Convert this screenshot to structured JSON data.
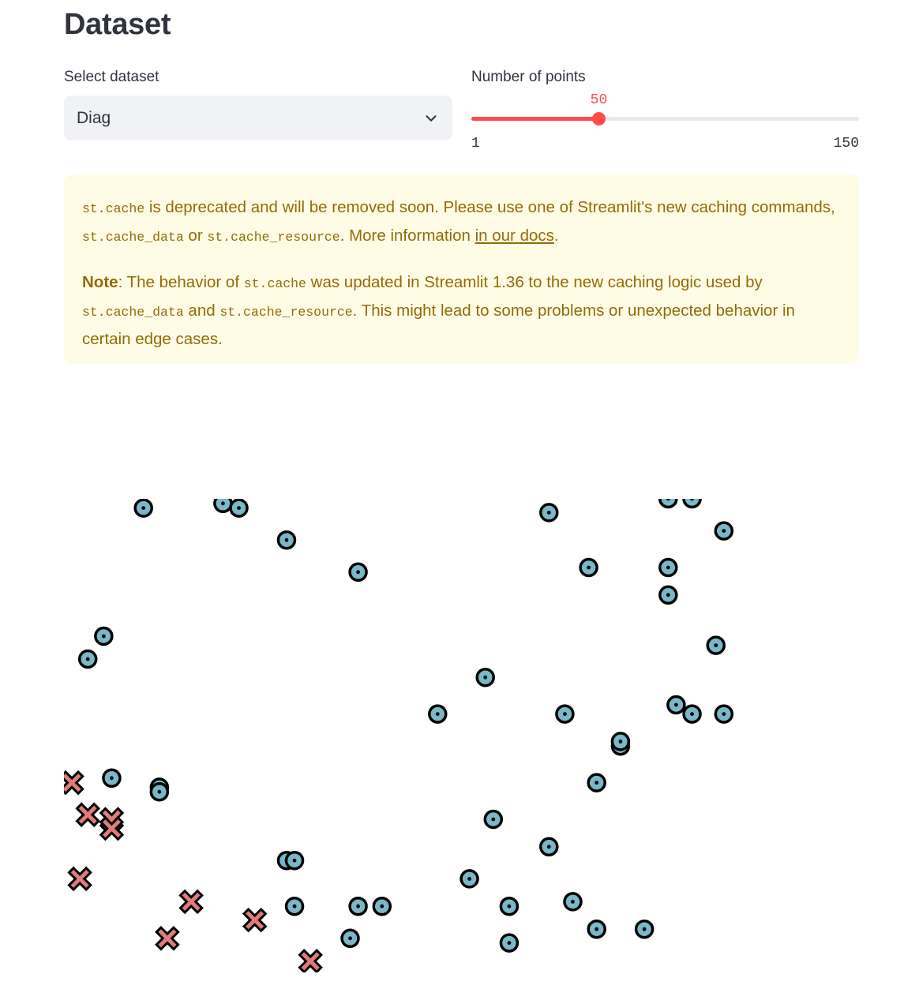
{
  "page": {
    "title": "Dataset"
  },
  "controls": {
    "dataset_label": "Select dataset",
    "dataset_value": "Diag",
    "points_label": "Number of points",
    "points_value": "50",
    "points_min": "1",
    "points_max": "150"
  },
  "alert": {
    "line1_code1": "st.cache",
    "line1_text1": " is deprecated and will be removed soon. Please use one of Streamlit's new caching commands, ",
    "line1_code2": "st.cache_data",
    "line1_text2": " or ",
    "line1_code3": "st.cache_resource",
    "line1_text3": ". More information ",
    "line1_link": "in our docs",
    "line1_text4": ".",
    "note_label": "Note",
    "line2_text1": ": The behavior of ",
    "line2_code1": "st.cache",
    "line2_text2": " was updated in Streamlit 1.36 to the new caching logic used by ",
    "line2_code2": "st.cache_data",
    "line2_text3": " and ",
    "line2_code3": "st.cache_resource",
    "line2_text4": ". This might lead to some problems or unexpected behavior in certain edge cases."
  },
  "colors": {
    "accent": "#ff4b4b",
    "warning_bg": "#fffce6",
    "warning_text": "#926c05",
    "circle_fill": "#7ab8c9",
    "cross_fill": "#e07c7c"
  },
  "chart_data": {
    "type": "scatter",
    "x_range": [
      0.0,
      1.0
    ],
    "y_range": [
      0.0,
      1.0
    ],
    "grid": false,
    "series": [
      {
        "marker": "circle",
        "points": [
          [
            0.1,
            0.98
          ],
          [
            0.2,
            0.99
          ],
          [
            0.22,
            0.98
          ],
          [
            0.28,
            0.91
          ],
          [
            0.37,
            0.84
          ],
          [
            0.05,
            0.7
          ],
          [
            0.03,
            0.65
          ],
          [
            0.61,
            0.97
          ],
          [
            0.76,
            1.0
          ],
          [
            0.79,
            1.0
          ],
          [
            0.83,
            0.93
          ],
          [
            0.66,
            0.85
          ],
          [
            0.76,
            0.85
          ],
          [
            0.76,
            0.79
          ],
          [
            0.82,
            0.68
          ],
          [
            0.53,
            0.61
          ],
          [
            0.47,
            0.53
          ],
          [
            0.63,
            0.53
          ],
          [
            0.77,
            0.55
          ],
          [
            0.79,
            0.53
          ],
          [
            0.83,
            0.53
          ],
          [
            0.7,
            0.46
          ],
          [
            0.7,
            0.47
          ],
          [
            0.67,
            0.38
          ],
          [
            0.06,
            0.39
          ],
          [
            0.12,
            0.37
          ],
          [
            0.12,
            0.36
          ],
          [
            0.54,
            0.3
          ],
          [
            0.61,
            0.24
          ],
          [
            0.28,
            0.21
          ],
          [
            0.29,
            0.21
          ],
          [
            0.51,
            0.17
          ],
          [
            0.64,
            0.12
          ],
          [
            0.29,
            0.11
          ],
          [
            0.37,
            0.11
          ],
          [
            0.4,
            0.11
          ],
          [
            0.56,
            0.11
          ],
          [
            0.36,
            0.04
          ],
          [
            0.56,
            0.03
          ],
          [
            0.67,
            0.06
          ],
          [
            0.73,
            0.06
          ]
        ]
      },
      {
        "marker": "cross",
        "points": [
          [
            0.01,
            0.38
          ],
          [
            0.03,
            0.31
          ],
          [
            0.06,
            0.3
          ],
          [
            0.06,
            0.28
          ],
          [
            0.02,
            0.17
          ],
          [
            0.16,
            0.12
          ],
          [
            0.13,
            0.04
          ],
          [
            0.24,
            0.08
          ],
          [
            0.31,
            -0.01
          ]
        ]
      }
    ]
  }
}
